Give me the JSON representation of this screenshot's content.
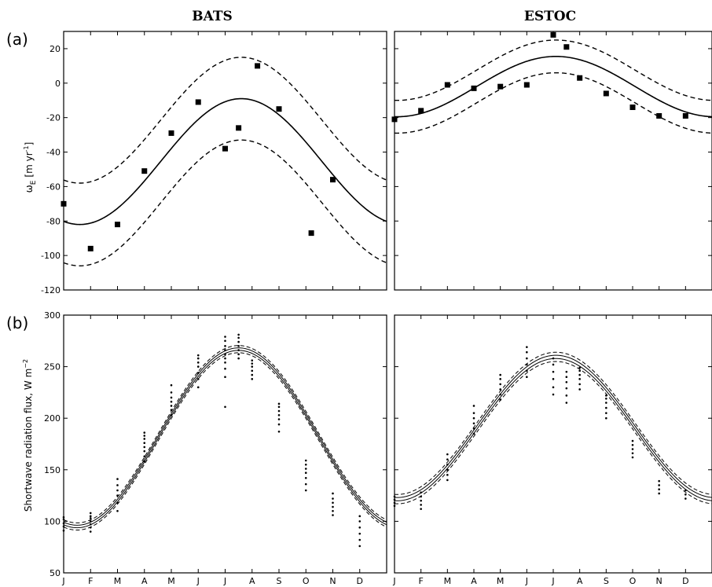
{
  "figure": {
    "titles": [
      "BATS",
      "ESTOC"
    ],
    "panel_labels": [
      "(a)",
      "(b)"
    ],
    "ylabels": {
      "a": {
        "main": "ω",
        "sub": "E",
        "unit": "[m yr",
        "unit_sup": "-1",
        "unit_close": "]"
      },
      "b": {
        "main": "Shortwave radiation flux, W m",
        "sup": "−2"
      }
    },
    "month_labels": [
      "J",
      "F",
      "M",
      "A",
      "M",
      "J",
      "J",
      "A",
      "S",
      "O",
      "N",
      "D"
    ]
  },
  "chart_data": [
    {
      "id": "a-bats",
      "type": "scatter",
      "title": "BATS",
      "panel": "(a)",
      "ylabel": "ω E [m yr-1]",
      "xlim": [
        0,
        12
      ],
      "ylim": [
        -120,
        30
      ],
      "yticks": [
        -120,
        -100,
        -80,
        -60,
        -40,
        -20,
        0,
        20
      ],
      "xticklabels": [
        "J",
        "F",
        "M",
        "A",
        "M",
        "J",
        "J",
        "A",
        "S",
        "O",
        "N",
        "D"
      ],
      "fit": {
        "mean": -45.5,
        "amplitude": 36.5,
        "peak_month": 6.6,
        "band": 24
      },
      "series": [
        {
          "kind": "markers",
          "x": [
            0.0,
            1.0,
            2.0,
            3.0,
            4.0,
            5.0,
            6.0,
            6.5,
            7.2,
            8.0,
            9.2,
            10.0
          ],
          "values": [
            -70,
            -96,
            -82,
            -51,
            -29,
            -11,
            -38,
            -26,
            10,
            -15,
            -87,
            -56
          ]
        }
      ]
    },
    {
      "id": "a-estoc",
      "type": "scatter",
      "title": "ESTOC",
      "panel": "(a)",
      "xlim": [
        0,
        12
      ],
      "ylim": [
        -120,
        30
      ],
      "yticks": [
        -120,
        -100,
        -80,
        -60,
        -40,
        -20,
        0,
        20
      ],
      "xticklabels": [
        "J",
        "F",
        "M",
        "A",
        "M",
        "J",
        "J",
        "A",
        "S",
        "O",
        "N",
        "D"
      ],
      "fit": {
        "mean": -2,
        "amplitude": 17.5,
        "peak_month": 6.1,
        "band": 9.5
      },
      "series": [
        {
          "kind": "markers",
          "x": [
            0.0,
            1.0,
            2.0,
            3.0,
            4.0,
            5.0,
            6.0,
            6.5,
            7.0,
            8.0,
            9.0,
            10.0,
            11.0
          ],
          "values": [
            -21,
            -16,
            -1,
            -3,
            -2,
            -1,
            28,
            21,
            3,
            -6,
            -14,
            -19,
            -19
          ]
        }
      ]
    },
    {
      "id": "b-bats",
      "type": "scatter",
      "title": "BATS",
      "panel": "(b)",
      "ylabel": "Shortwave radiation flux, W m−2",
      "xlim": [
        0,
        12
      ],
      "ylim": [
        50,
        300
      ],
      "yticks": [
        50,
        100,
        150,
        200,
        250,
        300
      ],
      "xticklabels": [
        "J",
        "F",
        "M",
        "A",
        "M",
        "J",
        "J",
        "A",
        "S",
        "O",
        "N",
        "D"
      ],
      "fit": {
        "mean": 181,
        "amplitude": 86,
        "peak_month": 6.5,
        "band": 3.5
      },
      "series": [
        {
          "kind": "dots",
          "month_centers": [
            0.0,
            1.0,
            2.0,
            3.0,
            4.0,
            5.0,
            6.0,
            6.5,
            7.0,
            8.0,
            9.0,
            10.0,
            11.0
          ],
          "values": [
            [
              91,
              95,
              98,
              102,
              104
            ],
            [
              90,
              94,
              97,
              100,
              103,
              105,
              108
            ],
            [
              110,
              118,
              125,
              130,
              135,
              141
            ],
            [
              158,
              163,
              168,
              172,
              176,
              180,
              183,
              186
            ],
            [
              203,
              208,
              212,
              216,
              220,
              225,
              232
            ],
            [
              230,
              238,
              244,
              250,
              254,
              258,
              261
            ],
            [
              211,
              240,
              248,
              254,
              258,
              262,
              266,
              270,
              275,
              279
            ],
            [
              258,
              262,
              266,
              270,
              274,
              278,
              281
            ],
            [
              238,
              242,
              246,
              250,
              253,
              256
            ],
            [
              187,
              194,
              199,
              203,
              207,
              211,
              214
            ],
            [
              130,
              136,
              142,
              147,
              151,
              155,
              159
            ],
            [
              106,
              110,
              114,
              118,
              122,
              127
            ],
            [
              76,
              82,
              88,
              94,
              100,
              105
            ]
          ]
        }
      ]
    },
    {
      "id": "b-estoc",
      "type": "scatter",
      "title": "ESTOC",
      "panel": "(b)",
      "xlim": [
        0,
        12
      ],
      "ylim": [
        50,
        300
      ],
      "yticks": [
        50,
        100,
        150,
        200,
        250,
        300
      ],
      "xticklabels": [
        "J",
        "F",
        "M",
        "A",
        "M",
        "J",
        "J",
        "A",
        "S",
        "O",
        "N",
        "D"
      ],
      "fit": {
        "mean": 190.5,
        "amplitude": 69,
        "peak_month": 6.1,
        "band": 4.5
      },
      "series": [
        {
          "kind": "dots",
          "month_centers": [
            0.0,
            1.0,
            2.0,
            3.0,
            4.0,
            5.0,
            6.0,
            6.5,
            7.0,
            8.0,
            9.0,
            10.0,
            11.0
          ],
          "values": [
            [
              115,
              118,
              121,
              124
            ],
            [
              112,
              116,
              120,
              124,
              128
            ],
            [
              140,
              145,
              150,
              155,
              160,
              165
            ],
            [
              185,
              190,
              195,
              200,
              205,
              212
            ],
            [
              218,
              223,
              228,
              233,
              238,
              242
            ],
            [
              240,
              246,
              252,
              258,
              264,
              269
            ],
            [
              223,
              230,
              238,
              245,
              252,
              258
            ],
            [
              215,
              222,
              229,
              235,
              240,
              245
            ],
            [
              228,
              233,
              238,
              242,
              246,
              249
            ],
            [
              200,
              205,
              210,
              215,
              219,
              222
            ],
            [
              162,
              166,
              170,
              174,
              178
            ],
            [
              127,
              131,
              135,
              139
            ],
            [
              122,
              126,
              130
            ]
          ]
        }
      ]
    }
  ]
}
